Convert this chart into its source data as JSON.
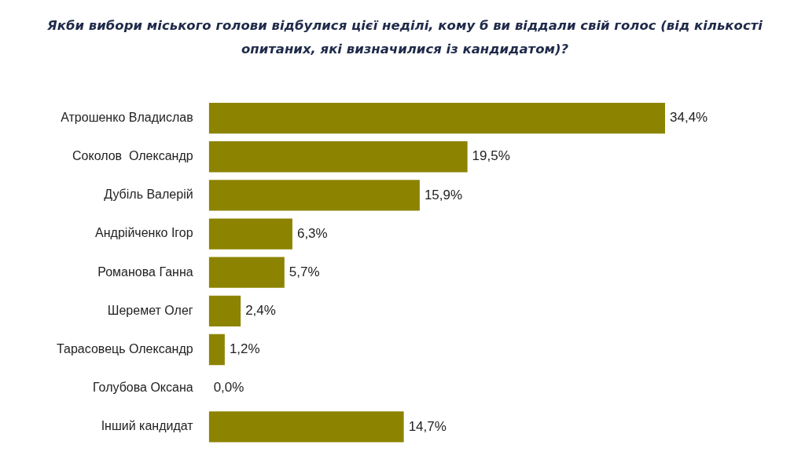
{
  "chart_data": {
    "type": "bar",
    "orientation": "horizontal",
    "title": "Якби вибори міського голови відбулися цієї неділі, кому б ви віддали свій голос (від кількості опитаних, які визначилися із кандидатом)?",
    "categories": [
      "Атрошенко Владислав",
      "Соколов  Олександр",
      "Дубіль Валерій",
      "Андрійченко Ігор",
      "Романова Ганна",
      "Шеремет Олег",
      "Тарасовець Олександр",
      "Голубова Оксана",
      "Інший кандидат"
    ],
    "values": [
      34.4,
      19.5,
      15.9,
      6.3,
      5.7,
      2.4,
      1.2,
      0.0,
      14.7
    ],
    "value_labels": [
      "34,4%",
      "19,5%",
      "15,9%",
      "6,3%",
      "5,7%",
      "2,4%",
      "1,2%",
      "0,0%",
      "14,7%"
    ],
    "color": "#8c8400",
    "legend": false
  }
}
